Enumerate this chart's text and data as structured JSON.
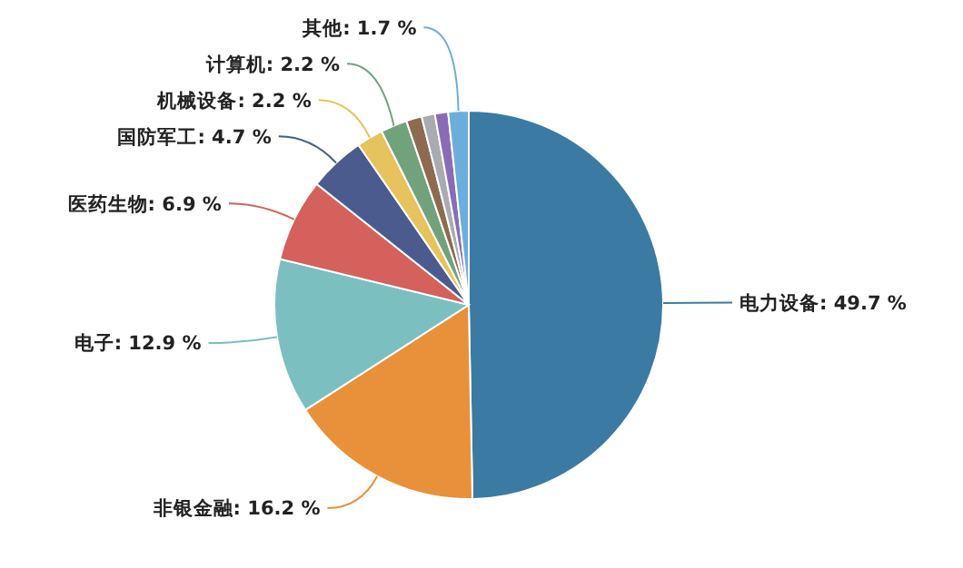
{
  "chart_data": {
    "type": "pie",
    "categories": [
      "电力设备",
      "非银金融",
      "电子",
      "医药生物",
      "国防军工",
      "机械设备",
      "计算机",
      null,
      null,
      null,
      "其他"
    ],
    "values": [
      49.7,
      16.2,
      12.9,
      6.9,
      4.7,
      2.2,
      2.2,
      1.3,
      1.1,
      1.1,
      1.7
    ],
    "value_labels": [
      "49.7 %",
      "16.2 %",
      "12.9 %",
      "6.9 %",
      "4.7 %",
      "2.2 %",
      "2.2 %",
      null,
      null,
      null,
      "1.7 %"
    ],
    "colors": [
      "#3b7ba3",
      "#e8913a",
      "#7cbfc1",
      "#d4615c",
      "#4b5b8d",
      "#e6c35c",
      "#72a27c",
      "#8c6b50",
      "#a9abb2",
      "#8a6cb6",
      "#6caedb"
    ]
  }
}
